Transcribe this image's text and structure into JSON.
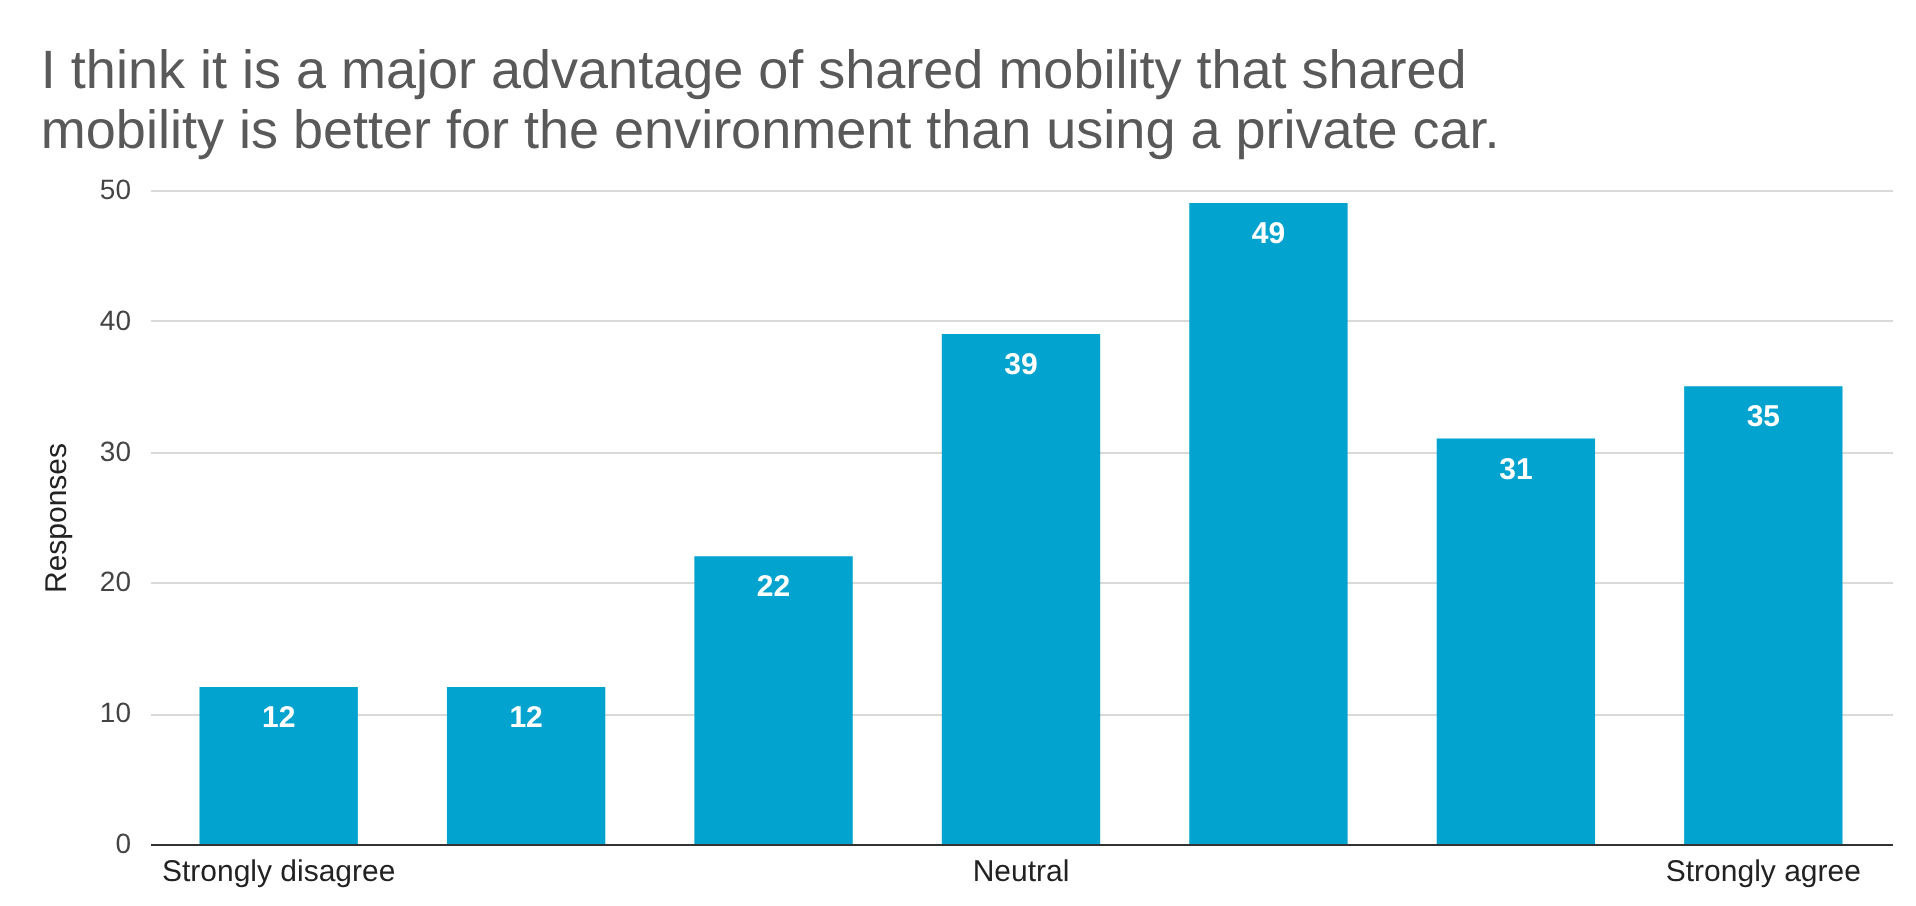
{
  "chart_data": {
    "type": "bar",
    "title": "I think it is a major advantage of shared mobility that shared mobility is better for the environment than using a private car.",
    "ylabel": "Responses",
    "categories": [
      "Strongly disagree",
      null,
      null,
      "Neutral",
      null,
      null,
      "Strongly agree"
    ],
    "values": [
      12,
      12,
      22,
      39,
      49,
      31,
      35
    ],
    "color": "#02a3cf",
    "ylim": [
      0,
      50
    ],
    "yticks": [
      0,
      10,
      20,
      30,
      40,
      50
    ],
    "grid": "y",
    "data_labels": true
  }
}
